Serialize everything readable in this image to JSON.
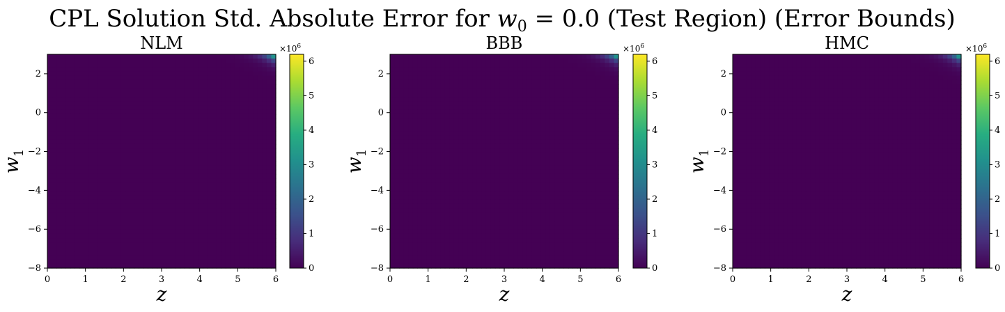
{
  "figure": {
    "title_prefix": "CPL Solution Std. Absolute Error for ",
    "title_var": "w",
    "title_sub": "0",
    "title_suffix": " = 0.0 (Test Region) (Error Bounds)"
  },
  "chart_data": [
    {
      "type": "heatmap",
      "title": "NLM",
      "xlabel": "z",
      "ylabel_var": "w",
      "ylabel_sub": "1",
      "xlim": [
        0,
        6
      ],
      "ylim": [
        -8,
        3
      ],
      "xticks": [
        0,
        1,
        2,
        3,
        4,
        5,
        6
      ],
      "yticks": [
        -8,
        -6,
        -4,
        -2,
        0,
        2
      ],
      "colormap": "viridis",
      "colorbar": {
        "min": 0,
        "max": 6.2,
        "ticks": [
          0,
          1,
          2,
          3,
          4,
          5,
          6
        ],
        "multiplier_base": "×10",
        "multiplier_exp": "6"
      },
      "peak": {
        "z": 6,
        "w1": 3,
        "value": 6.2
      },
      "background_value": 0
    },
    {
      "type": "heatmap",
      "title": "BBB",
      "xlabel": "z",
      "ylabel_var": "w",
      "ylabel_sub": "1",
      "xlim": [
        0,
        6
      ],
      "ylim": [
        -8,
        3
      ],
      "xticks": [
        0,
        1,
        2,
        3,
        4,
        5,
        6
      ],
      "yticks": [
        -8,
        -6,
        -4,
        -2,
        0,
        2
      ],
      "colormap": "viridis",
      "colorbar": {
        "min": 0,
        "max": 6.2,
        "ticks": [
          0,
          1,
          2,
          3,
          4,
          5,
          6
        ],
        "multiplier_base": "×10",
        "multiplier_exp": "6"
      },
      "peak": {
        "z": 6,
        "w1": 3,
        "value": 6.2
      },
      "background_value": 0
    },
    {
      "type": "heatmap",
      "title": "HMC",
      "xlabel": "z",
      "ylabel_var": "w",
      "ylabel_sub": "1",
      "xlim": [
        0,
        6
      ],
      "ylim": [
        -8,
        3
      ],
      "xticks": [
        0,
        1,
        2,
        3,
        4,
        5,
        6
      ],
      "yticks": [
        -8,
        -6,
        -4,
        -2,
        0,
        2
      ],
      "colormap": "viridis",
      "colorbar": {
        "min": 0,
        "max": 6.2,
        "ticks": [
          0,
          1,
          2,
          3,
          4,
          5,
          6
        ],
        "multiplier_base": "×10",
        "multiplier_exp": "6"
      },
      "peak": {
        "z": 6,
        "w1": 3,
        "value": 6.2
      },
      "background_value": 0
    }
  ],
  "colors": {
    "viridis_stops": [
      "#440154",
      "#472c7a",
      "#3b518b",
      "#2c718e",
      "#21908d",
      "#27ad81",
      "#5cc863",
      "#aadc32",
      "#fde725"
    ]
  }
}
